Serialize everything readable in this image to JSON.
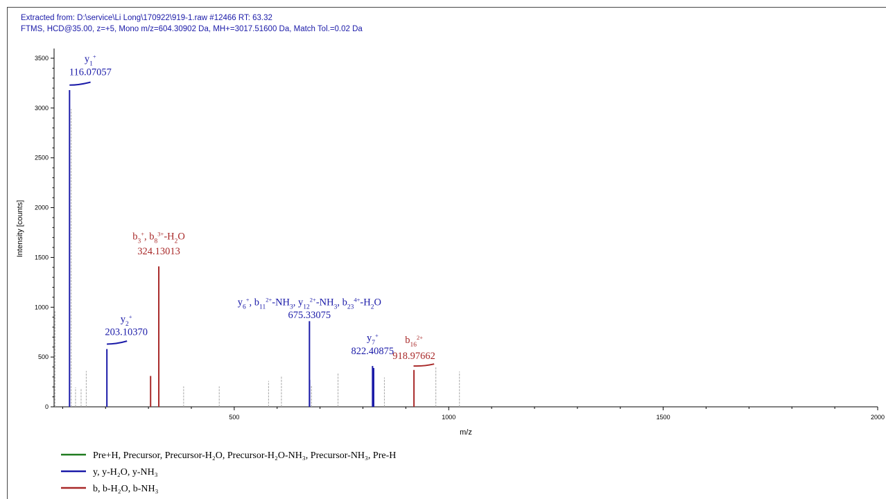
{
  "header": {
    "line1": "Extracted from: D:\\service\\Li Long\\170922\\919-1.raw  #12466  RT: 63.32",
    "line2": "FTMS, HCD@35.00, z=+5, Mono m/z=604.30902 Da, MH+=3017.51600 Da, Match Tol.=0.02 Da"
  },
  "colors": {
    "blue": "#1a1aa8",
    "red": "#a82828",
    "green": "#1e7a1e",
    "gray": "#a8a8a8"
  },
  "chart_data": {
    "type": "bar",
    "xlabel": "m/z",
    "ylabel": "Intensity [counts]",
    "xlim": [
      80,
      2000
    ],
    "ylim": [
      0,
      3600
    ],
    "xticks": [
      500,
      1000,
      1500,
      2000
    ],
    "yticks": [
      0,
      500,
      1000,
      1500,
      2000,
      2500,
      3000,
      3500
    ],
    "legend": [
      {
        "color": "green",
        "text": "Pre+H, Precursor, Precursor-H₂O, Precursor-H₂O-NH₃, Precursor-NH₃, Pre-H"
      },
      {
        "color": "blue",
        "text": "y, y-H₂O, y-NH₃"
      },
      {
        "color": "red",
        "text": "b, b-H₂O, b-NH₃"
      }
    ],
    "peaks": [
      {
        "mz": 82,
        "intensity": 970,
        "color": "gray"
      },
      {
        "mz": 116.07,
        "intensity": 3180,
        "color": "blue"
      },
      {
        "mz": 120,
        "intensity": 2990,
        "color": "gray"
      },
      {
        "mz": 130,
        "intensity": 195,
        "color": "gray"
      },
      {
        "mz": 143,
        "intensity": 180,
        "color": "gray"
      },
      {
        "mz": 155,
        "intensity": 360,
        "color": "gray"
      },
      {
        "mz": 203.1,
        "intensity": 580,
        "color": "blue"
      },
      {
        "mz": 305,
        "intensity": 310,
        "color": "red"
      },
      {
        "mz": 324.13,
        "intensity": 1410,
        "color": "red"
      },
      {
        "mz": 382,
        "intensity": 205,
        "color": "gray"
      },
      {
        "mz": 465,
        "intensity": 205,
        "color": "gray"
      },
      {
        "mz": 580,
        "intensity": 260,
        "color": "gray"
      },
      {
        "mz": 610,
        "intensity": 305,
        "color": "gray"
      },
      {
        "mz": 675.33,
        "intensity": 860,
        "color": "blue"
      },
      {
        "mz": 675.6,
        "intensity": 270,
        "color": "blue"
      },
      {
        "mz": 680,
        "intensity": 210,
        "color": "gray"
      },
      {
        "mz": 742,
        "intensity": 340,
        "color": "gray"
      },
      {
        "mz": 822.41,
        "intensity": 410,
        "color": "blue"
      },
      {
        "mz": 825,
        "intensity": 390,
        "color": "blue"
      },
      {
        "mz": 850,
        "intensity": 295,
        "color": "gray"
      },
      {
        "mz": 918.98,
        "intensity": 370,
        "color": "red"
      },
      {
        "mz": 970,
        "intensity": 400,
        "color": "gray"
      },
      {
        "mz": 1025,
        "intensity": 355,
        "color": "gray"
      }
    ],
    "annotations": [
      {
        "color": "blue",
        "mz": 116.07,
        "label_y": 3460,
        "label_html": "y<tspan baseline-shift='sub' font-size='10'>1</tspan><tspan baseline-shift='super' font-size='9'>+</tspan>",
        "label_text": "y1+",
        "mass": "116.07057",
        "mass_y": 3330,
        "marker": [
          116,
          3230,
          165,
          3260
        ]
      },
      {
        "color": "blue",
        "mz": 203.1,
        "label_y": 850,
        "label_text": "y2+",
        "mass": "203.10370",
        "mass_y": 720,
        "marker": [
          203,
          630,
          250,
          660
        ]
      },
      {
        "color": "red",
        "mz": 324.13,
        "label_y": 1680,
        "label_text": "b3+, b8 3+-H2O",
        "mass": "324.13013",
        "mass_y": 1530,
        "marker": null
      },
      {
        "color": "blue",
        "mz": 675.33,
        "label_y": 1020,
        "label_text": "y6+, b11 2+-NH3, y12 2+-NH3, b23 4+-H2O",
        "mass": "675.33075",
        "mass_y": 890,
        "marker": null
      },
      {
        "color": "blue",
        "mz": 822.41,
        "label_y": 660,
        "label_text": "y7+",
        "mass": "822.40875",
        "mass_y": 530,
        "marker": null
      },
      {
        "color": "red",
        "mz": 918.98,
        "label_y": 640,
        "label_text": "b16 2+",
        "mass": "918.97662",
        "mass_y": 480,
        "marker": [
          918,
          410,
          966,
          430
        ]
      }
    ]
  }
}
